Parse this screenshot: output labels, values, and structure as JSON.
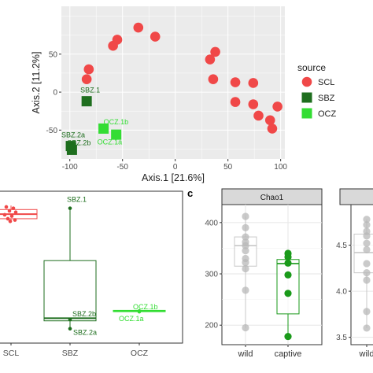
{
  "colors": {
    "SCL": "#f04848",
    "SBZ": "#1e6e1e",
    "OCZ": "#33dd33",
    "panel_bg": "#ebebeb",
    "grid": "#ffffff",
    "strip_bg": "#d9d9d9",
    "grey_point": "#b8b8b8",
    "grey_box": "#c8c8c8",
    "captive": "#1a9a1a"
  },
  "chart_data": [
    {
      "id": "pca",
      "type": "scatter",
      "xlabel": "Axis.1   [21.6%]",
      "ylabel": "Axis.2   [11.2%]",
      "xlim": [
        -108,
        104
      ],
      "ylim": [
        -88,
        113
      ],
      "xticks": [
        -100,
        -50,
        0,
        50,
        100
      ],
      "yticks": [
        -50,
        0,
        50
      ],
      "xtick_labels": [
        "-100",
        "-50",
        "0",
        "50",
        "100"
      ],
      "ytick_labels": [
        "-50",
        "0",
        "50"
      ],
      "legend": {
        "title": "source",
        "entries": [
          "SCL",
          "SBZ",
          "OCZ"
        ],
        "placement": "right"
      },
      "series": [
        {
          "name": "SCL",
          "shape": "circle",
          "points": [
            [
              -35,
              85
            ],
            [
              -19,
              73
            ],
            [
              -55,
              69
            ],
            [
              -59,
              61
            ],
            [
              -82,
              30
            ],
            [
              -84,
              17
            ],
            [
              38,
              53
            ],
            [
              33,
              43
            ],
            [
              36,
              17
            ],
            [
              57,
              13
            ],
            [
              74,
              12
            ],
            [
              57,
              -13
            ],
            [
              74,
              -16
            ],
            [
              97,
              -19
            ],
            [
              79,
              -31
            ],
            [
              90,
              -37
            ],
            [
              92,
              -48
            ]
          ]
        },
        {
          "name": "SBZ",
          "shape": "square",
          "points": [
            {
              "x": -84,
              "y": -12,
              "label": "SBZ.1"
            },
            {
              "x": -99,
              "y": -71,
              "label": "SBZ.2a"
            },
            {
              "x": -98,
              "y": -76,
              "label": "SBZ.2b"
            }
          ]
        },
        {
          "name": "OCZ",
          "shape": "square",
          "points": [
            {
              "x": -68,
              "y": -48,
              "label": "OCZ.1a"
            },
            {
              "x": -56,
              "y": -56,
              "label": "OCZ.1b"
            }
          ]
        }
      ]
    },
    {
      "id": "beta-box",
      "type": "box",
      "categories": [
        "SCL",
        "SBZ",
        "OCZ"
      ],
      "category_labels": [
        "SCL",
        "SBZ",
        "OCZ"
      ],
      "ylim": [
        -0.08,
        1.08
      ],
      "boxes": [
        {
          "category": "SCL",
          "min": 0.84,
          "q1": 0.87,
          "median": 0.905,
          "q3": 0.94,
          "max": 0.97
        },
        {
          "category": "SBZ",
          "min": 0.02,
          "q1": 0.09,
          "median": 0.11,
          "q3": 0.55,
          "max": 0.95
        },
        {
          "category": "OCZ",
          "min": 0.16,
          "q1": 0.16,
          "median": 0.165,
          "q3": 0.17,
          "max": 0.17
        }
      ],
      "points": [
        {
          "category": "SCL",
          "y": 0.96
        },
        {
          "category": "SCL",
          "y": 0.95
        },
        {
          "category": "SCL",
          "y": 0.93
        },
        {
          "category": "SCL",
          "y": 0.92
        },
        {
          "category": "SCL",
          "y": 0.9
        },
        {
          "category": "SCL",
          "y": 0.89
        },
        {
          "category": "SCL",
          "y": 0.87
        },
        {
          "category": "SCL",
          "y": 0.86
        },
        {
          "category": "SCL",
          "y": 0.85
        },
        {
          "category": "SBZ",
          "y": 0.95,
          "label": "SBZ.1"
        },
        {
          "category": "SBZ",
          "y": 0.1,
          "label": "SBZ.2b"
        },
        {
          "category": "SBZ",
          "y": 0.03,
          "label": "SBZ.2a"
        },
        {
          "category": "OCZ",
          "y": 0.165,
          "label": "OCZ.1b"
        },
        {
          "category": "OCZ",
          "y": 0.16,
          "label": "OCZ.1a"
        }
      ]
    },
    {
      "id": "chao1",
      "type": "box",
      "panel_letter": "c",
      "facet": "Chao1",
      "categories": [
        "wild",
        "captive"
      ],
      "category_labels": [
        "wild",
        "captive"
      ],
      "ylim": [
        162,
        435
      ],
      "yticks": [
        200,
        300,
        400
      ],
      "ytick_labels": [
        "200",
        "300",
        "400"
      ],
      "boxes": [
        {
          "category": "wild",
          "min": 195,
          "q1": 315,
          "median": 355,
          "q3": 372,
          "max": 412,
          "color": "grey"
        },
        {
          "category": "captive",
          "min": 178,
          "q1": 222,
          "median": 320,
          "q3": 328,
          "max": 340,
          "color": "captive"
        }
      ],
      "points": [
        {
          "category": "wild",
          "y": 412
        },
        {
          "category": "wild",
          "y": 390
        },
        {
          "category": "wild",
          "y": 372
        },
        {
          "category": "wild",
          "y": 362
        },
        {
          "category": "wild",
          "y": 355
        },
        {
          "category": "wild",
          "y": 345
        },
        {
          "category": "wild",
          "y": 330
        },
        {
          "category": "wild",
          "y": 322
        },
        {
          "category": "wild",
          "y": 310
        },
        {
          "category": "wild",
          "y": 268
        },
        {
          "category": "wild",
          "y": 195
        },
        {
          "category": "captive",
          "y": 340
        },
        {
          "category": "captive",
          "y": 333
        },
        {
          "category": "captive",
          "y": 321
        },
        {
          "category": "captive",
          "y": 298
        },
        {
          "category": "captive",
          "y": 262
        },
        {
          "category": "captive",
          "y": 178
        }
      ]
    },
    {
      "id": "shannon-partial",
      "type": "box",
      "facet": "",
      "categories": [
        "wild"
      ],
      "category_labels": [
        "wild"
      ],
      "ylim": [
        3.42,
        4.94
      ],
      "yticks": [
        3.5,
        4.0,
        4.5
      ],
      "ytick_labels": [
        "3.5",
        "4.0",
        "4.5"
      ],
      "boxes": [
        {
          "category": "wild",
          "min": 3.6,
          "q1": 4.2,
          "median": 4.42,
          "q3": 4.62,
          "max": 4.78,
          "color": "grey"
        }
      ],
      "points": [
        {
          "category": "wild",
          "y": 4.78
        },
        {
          "category": "wild",
          "y": 4.72
        },
        {
          "category": "wild",
          "y": 4.65
        },
        {
          "category": "wild",
          "y": 4.6
        },
        {
          "category": "wild",
          "y": 4.52
        },
        {
          "category": "wild",
          "y": 4.45
        },
        {
          "category": "wild",
          "y": 4.3
        },
        {
          "category": "wild",
          "y": 4.2
        },
        {
          "category": "wild",
          "y": 4.12
        },
        {
          "category": "wild",
          "y": 3.78
        },
        {
          "category": "wild",
          "y": 3.6
        }
      ]
    }
  ]
}
